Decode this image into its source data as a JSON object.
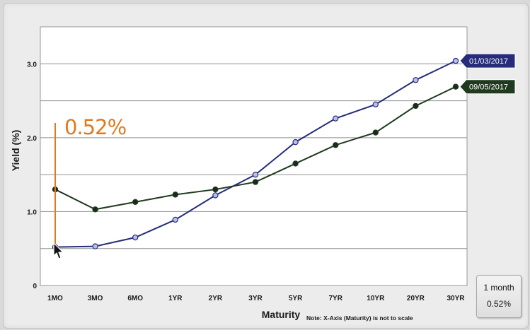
{
  "chart_data": {
    "type": "line",
    "xlabel": "Maturity",
    "ylabel": "Yield (%)",
    "note": "Note: X-Axis (Maturity) is not to scale",
    "categories": [
      "1MO",
      "3MO",
      "6MO",
      "1YR",
      "2YR",
      "3YR",
      "5YR",
      "7YR",
      "10YR",
      "20YR",
      "30YR"
    ],
    "ylim": [
      0,
      3.5
    ],
    "yticks": [
      "0",
      "1.0",
      "2.0",
      "3.0"
    ],
    "ytick_values": [
      0,
      1.0,
      2.0,
      3.0
    ],
    "grid": true,
    "legend_placement": "right, at series ends",
    "series": [
      {
        "name": "01/03/2017",
        "color": "#262c7a",
        "marker_color": "#b9bfe6",
        "values": [
          0.52,
          0.53,
          0.65,
          0.89,
          1.22,
          1.5,
          1.94,
          2.26,
          2.45,
          2.78,
          3.04
        ]
      },
      {
        "name": "09/05/2017",
        "color": "#1f3a1f",
        "marker_color": "#1c2a1c",
        "values": [
          1.3,
          1.03,
          1.13,
          1.23,
          1.3,
          1.4,
          1.65,
          1.9,
          2.07,
          2.43,
          2.69
        ]
      }
    ],
    "callout": {
      "text": "0.52%",
      "category": "1MO",
      "value": 0.52,
      "color": "#e07a1f",
      "top_value": 2.2
    }
  },
  "readout": {
    "term": "1 month",
    "value": "0.52%"
  }
}
